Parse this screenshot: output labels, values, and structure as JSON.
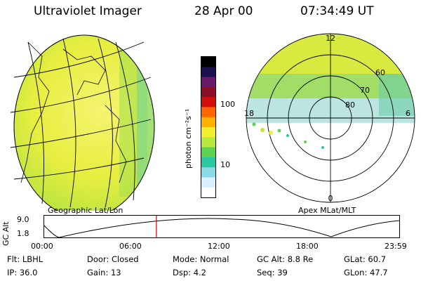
{
  "header": {
    "instrument": "Ultraviolet Imager",
    "date": "28 Apr 00",
    "time": "07:34:49 UT"
  },
  "colorbar": {
    "unit_label": "photon cm⁻²s⁻¹",
    "ticks": [
      "100",
      "10"
    ],
    "colors": [
      "#000000",
      "#1a1050",
      "#6a1a6a",
      "#8a0d2a",
      "#d20d0d",
      "#ff6600",
      "#ffb000",
      "#f0ef30",
      "#b8e840",
      "#5cd250",
      "#2ac8a0",
      "#8ad8e8",
      "#dcefff",
      "#ffffff"
    ]
  },
  "left_panel": {
    "caption": "Geographic Lat/Lon"
  },
  "right_panel": {
    "caption": "Apex MLat/MLT",
    "mlt_labels": {
      "top": "12",
      "left": "18",
      "right": "6",
      "bottom": "0"
    },
    "lat_labels": [
      "60",
      "70",
      "80"
    ]
  },
  "altitude_plot": {
    "ylabel": "GC Alt",
    "yticks": [
      "9.0",
      "1.8"
    ],
    "xticks": [
      "00:00",
      "06:00",
      "12:00",
      "18:00",
      "23:59"
    ],
    "current_time_fraction": 0.316
  },
  "status": {
    "row1": [
      {
        "label": "Flt:",
        "value": "LBHL"
      },
      {
        "label": "Door:",
        "value": "Closed"
      },
      {
        "label": "Mode:",
        "value": "Normal"
      },
      {
        "label": "GC Alt:",
        "value": "8.8 Re"
      },
      {
        "label": "GLat:",
        "value": "60.7"
      }
    ],
    "row2": [
      {
        "label": "IP:",
        "value": "36.0"
      },
      {
        "label": "Gain:",
        "value": "13"
      },
      {
        "label": "Dsp:",
        "value": "4.2"
      },
      {
        "label": "Seq:",
        "value": "39"
      },
      {
        "label": "GLon:",
        "value": "47.7"
      }
    ]
  }
}
